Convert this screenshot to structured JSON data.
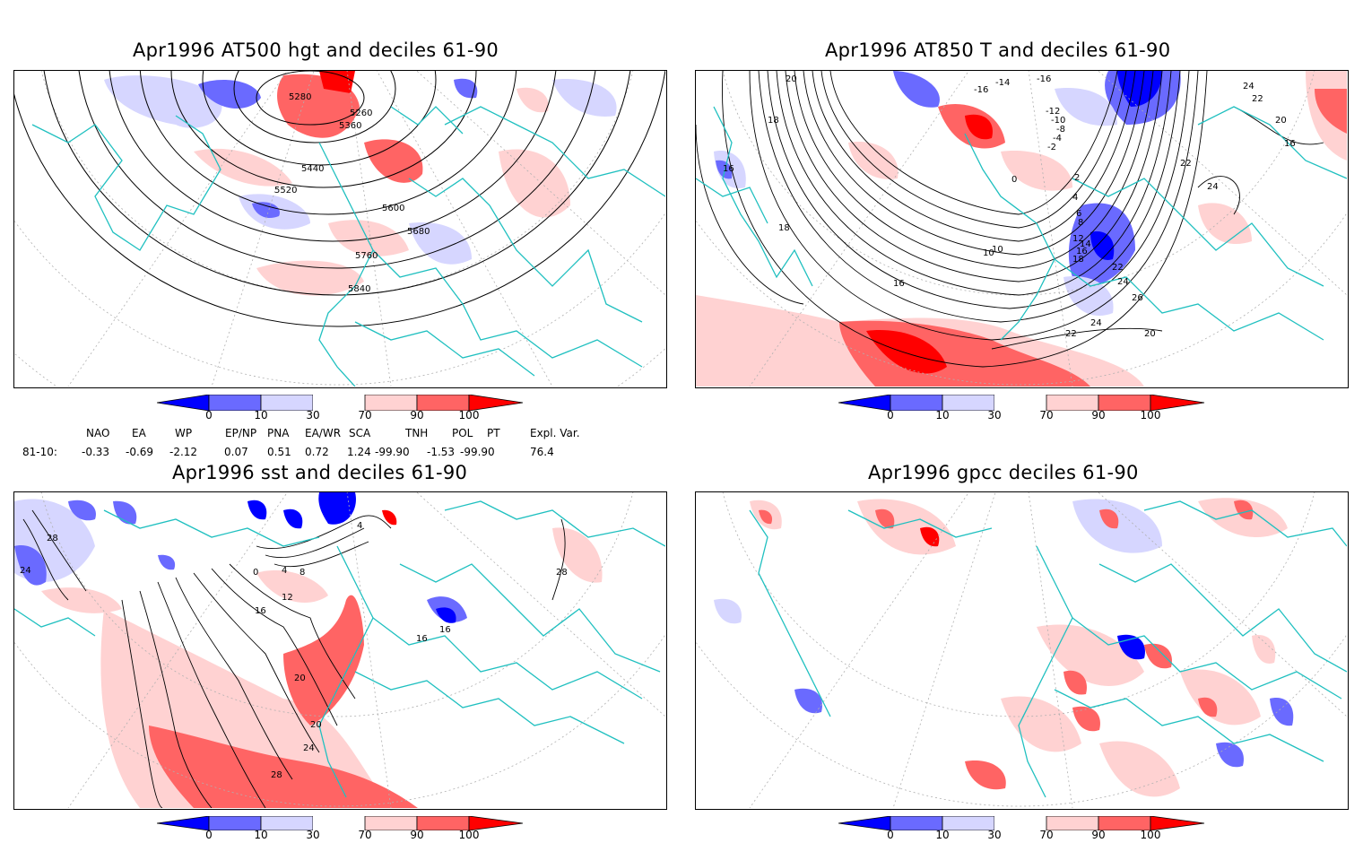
{
  "panels": {
    "tl": {
      "title": "Apr1996 AT500 hgt and deciles 61-90"
    },
    "tr": {
      "title": "Apr1996 AT850 T and deciles 61-90"
    },
    "bl": {
      "title": "Apr1996 sst and deciles 61-90"
    },
    "br": {
      "title": "Apr1996 gpcc deciles 61-90"
    }
  },
  "colorbar": {
    "labels": [
      "0",
      "10",
      "30",
      "70",
      "90",
      "100"
    ],
    "colors": [
      "#0000ff",
      "#6a6aff",
      "#d6d6ff",
      "#ffffff",
      "#ffd2d2",
      "#ff6464",
      "#ff0000"
    ]
  },
  "contour_labels": {
    "tl": [
      "5280",
      "5260",
      "5360",
      "5440",
      "5520",
      "5600",
      "5680",
      "5760",
      "5840"
    ],
    "tr": [
      "20",
      "18",
      "16",
      "-14",
      "-16",
      "-16",
      "-12",
      "-10",
      "-8",
      "-4",
      "-2",
      "0",
      "2",
      "4",
      "6",
      "8",
      "10",
      "12",
      "14",
      "16",
      "18",
      "22",
      "24",
      "26",
      "24",
      "22",
      "20",
      "16",
      "18",
      "22",
      "24",
      "22",
      "20",
      "24",
      "10",
      "16"
    ],
    "bl": [
      "28",
      "24",
      "0",
      "4",
      "8",
      "12",
      "16",
      "20",
      "20",
      "24",
      "28",
      "16",
      "16",
      "28",
      "4"
    ]
  },
  "indices": {
    "headers": [
      "NAO",
      "EA",
      "WP",
      "EP/NP",
      "PNA",
      "EA/WR",
      "SCA",
      "TNH",
      "POL",
      "PT",
      "Expl. Var."
    ],
    "row_label": "81-10:",
    "values": [
      "-0.33",
      "-0.69",
      "-2.12",
      "0.07",
      "0.51",
      "0.72",
      "1.24",
      "-99.90",
      "-1.53",
      "-99.90",
      "76.4"
    ]
  },
  "legend_colors": {
    "coast": "#20c0c0",
    "strong_neg": "#0000ff",
    "neg": "#6a6aff",
    "weak_neg": "#d6d6ff",
    "weak_pos": "#ffd2d2",
    "pos": "#ff6464",
    "strong_pos": "#ff0000"
  }
}
